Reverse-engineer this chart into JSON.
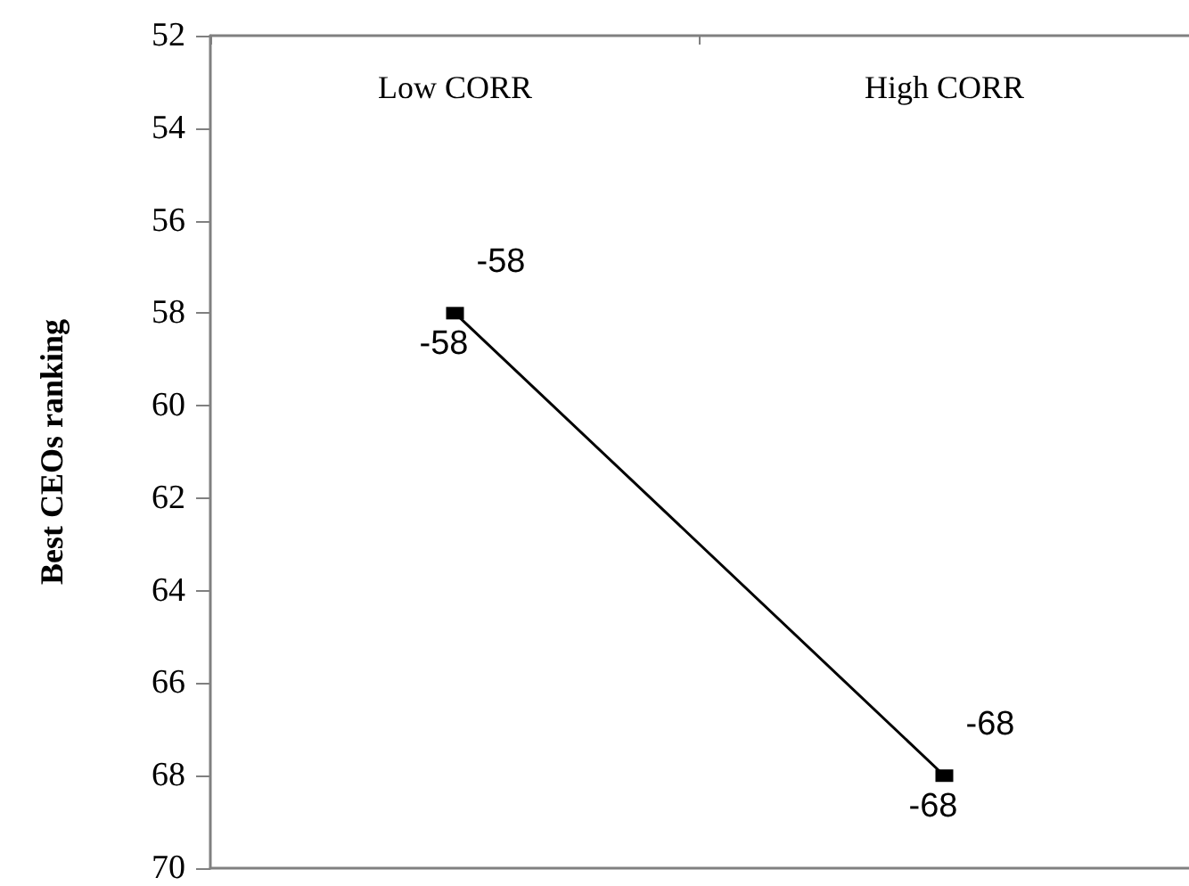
{
  "chart_data": {
    "type": "line",
    "ylabel": "Best CEOs ranking",
    "categories": [
      "Low CORR",
      "High CORR"
    ],
    "series": [
      {
        "color": "#000000",
        "values": [
          58,
          68
        ]
      }
    ],
    "ylim": [
      70,
      52
    ],
    "yticks": [
      52,
      54,
      56,
      58,
      60,
      62,
      64,
      66,
      68,
      70
    ],
    "marker": "square",
    "line_style": "solid",
    "grid": false,
    "annotations": [
      {
        "text": "-58",
        "x": "Low CORR",
        "y": 58
      },
      {
        "text": "-58",
        "x": "Low CORR",
        "y": 58
      },
      {
        "text": "-68",
        "x": "High CORR",
        "y": 68
      },
      {
        "text": "-68",
        "x": "High CORR",
        "y": 68
      }
    ]
  }
}
